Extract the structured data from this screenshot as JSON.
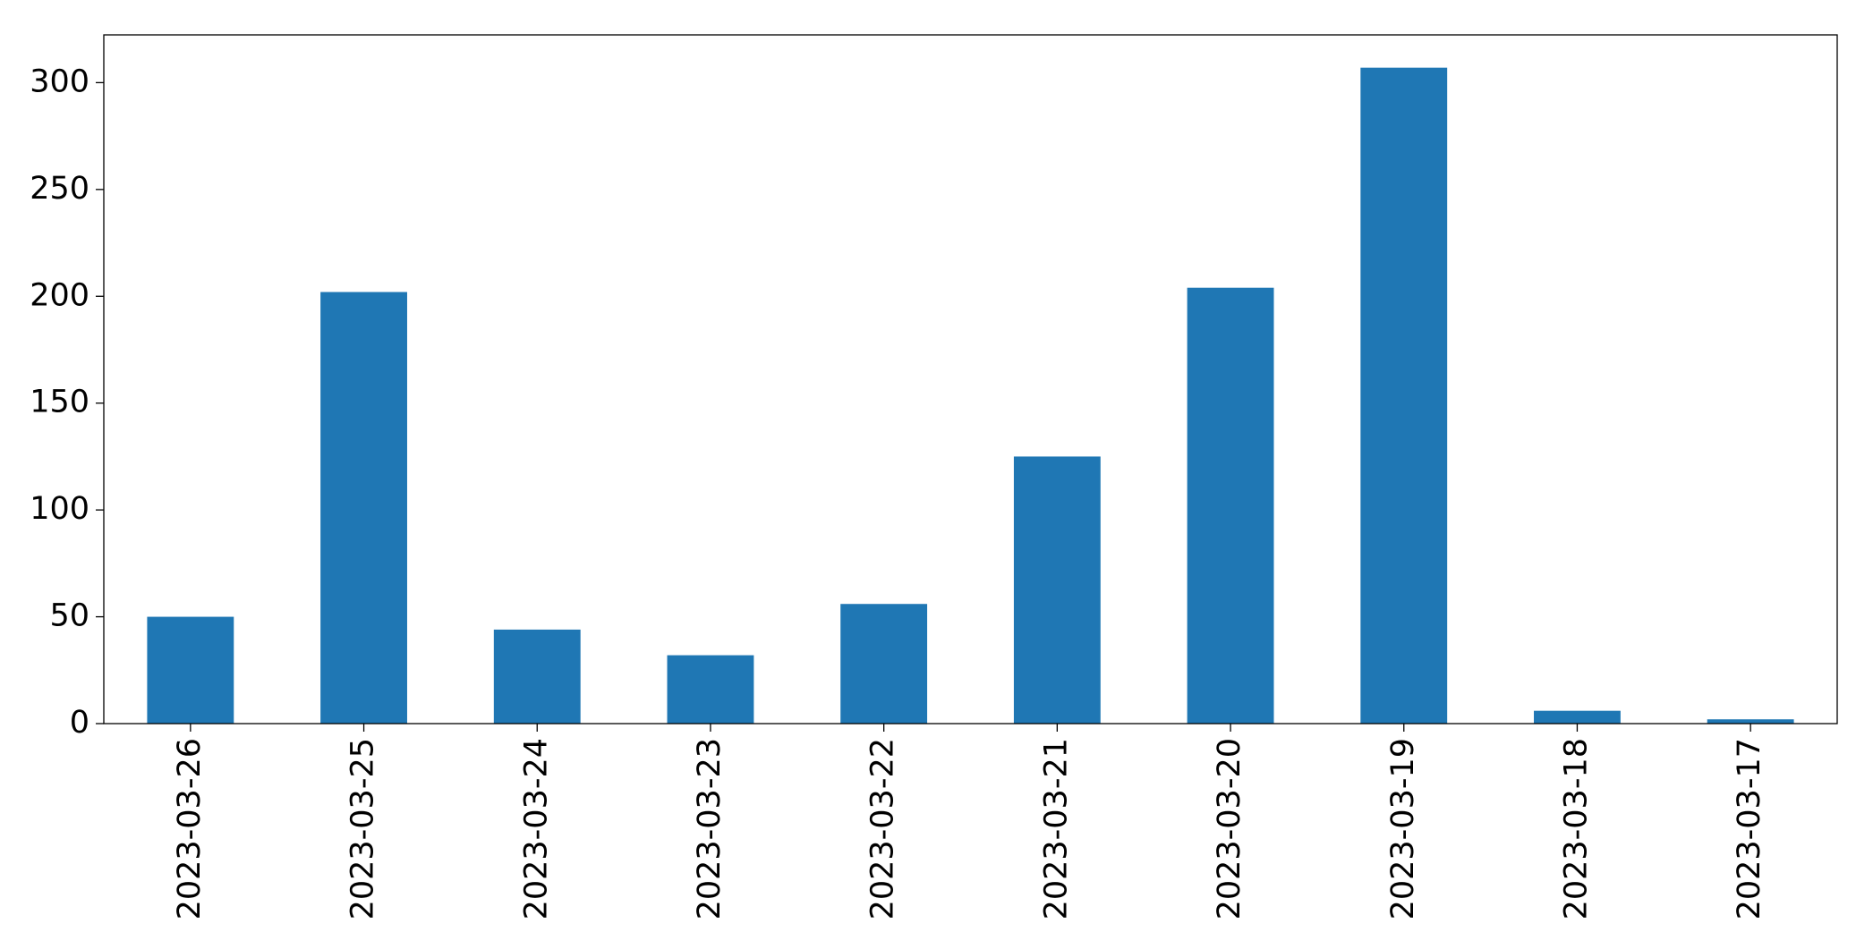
{
  "chart_data": {
    "type": "bar",
    "categories": [
      "2023-03-26",
      "2023-03-25",
      "2023-03-24",
      "2023-03-23",
      "2023-03-22",
      "2023-03-21",
      "2023-03-20",
      "2023-03-19",
      "2023-03-18",
      "2023-03-17"
    ],
    "values": [
      50,
      202,
      44,
      32,
      56,
      125,
      204,
      307,
      6,
      2
    ],
    "color": "#1f77b4",
    "ylim": [
      0,
      322.35
    ],
    "yticks": [
      0,
      50,
      100,
      150,
      200,
      250,
      300
    ],
    "grid": false
  }
}
